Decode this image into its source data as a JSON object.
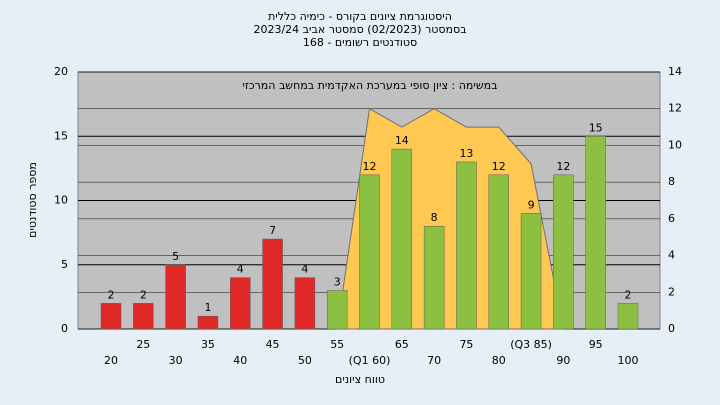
{
  "chart_data": {
    "type": "bar",
    "title": [
      "היסטוגרמת ציונים בקורס - כימיה כללית",
      "בסמסטר  (02/2023)  סמסטר אביב 2023/24",
      "סטודנטים רשומים - 168"
    ],
    "annotation": "במשימה : ציון סופי במערכת האקדמית במחשב המרכזי",
    "ylabel": "מספר סטודנטים",
    "xlabel": "טווח ציונים",
    "categories": [
      "20",
      "25",
      "30",
      "35",
      "40",
      "45",
      "50",
      "55",
      "(Q1 60)",
      "65",
      "70",
      "75",
      "80",
      "(Q3 85)",
      "90",
      "95",
      "100"
    ],
    "values": [
      2,
      2,
      5,
      1,
      4,
      7,
      4,
      3,
      12,
      14,
      8,
      13,
      12,
      9,
      12,
      15,
      2
    ],
    "colors": [
      "#e02828",
      "#e02828",
      "#e02828",
      "#e02828",
      "#e02828",
      "#e02828",
      "#e02828",
      "#8cc040",
      "#8cc040",
      "#8cc040",
      "#8cc040",
      "#8cc040",
      "#8cc040",
      "#8cc040",
      "#8cc040",
      "#8cc040",
      "#8cc040"
    ],
    "area": {
      "values": [
        null,
        null,
        null,
        null,
        null,
        null,
        null,
        0,
        12,
        11,
        12,
        11,
        11,
        9,
        0,
        null,
        null
      ],
      "color": "#ffc850",
      "axis": "y2"
    },
    "ylim": [
      0,
      20
    ],
    "yticks": [
      0,
      5,
      10,
      15,
      20
    ],
    "y2lim": [
      0,
      14
    ],
    "y2ticks": [
      0,
      2,
      4,
      6,
      8,
      10,
      12,
      14
    ],
    "grid": true
  }
}
